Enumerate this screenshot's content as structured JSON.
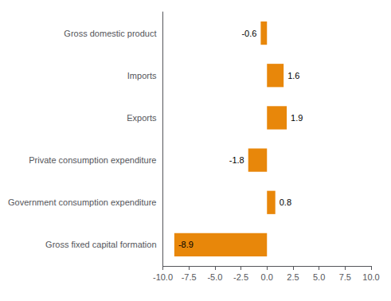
{
  "chart_data": {
    "type": "bar",
    "orientation": "horizontal",
    "categories": [
      "Gross fixed capital formation",
      "Government consumption expenditure",
      "Private consumption expenditure",
      "Exports",
      "Imports",
      "Gross domestic product"
    ],
    "values": [
      -8.9,
      0.8,
      -1.8,
      1.9,
      1.6,
      -0.6
    ],
    "color": "#E8870A",
    "xlim": [
      -10.0,
      10.0
    ],
    "xticks": [
      {
        "value": -10.0,
        "label": "-10.0"
      },
      {
        "value": -7.5,
        "label": "-7.5"
      },
      {
        "value": -5.0,
        "label": "-5.0"
      },
      {
        "value": -2.5,
        "label": "-2.5"
      },
      {
        "value": 0.0,
        "label": "0.0"
      },
      {
        "value": 2.5,
        "label": "2.5"
      },
      {
        "value": 5.0,
        "label": "5.0"
      },
      {
        "value": 7.5,
        "label": "7.5"
      },
      {
        "value": 10.0,
        "label": "10.0"
      }
    ],
    "grid": false,
    "data_labels": true
  }
}
